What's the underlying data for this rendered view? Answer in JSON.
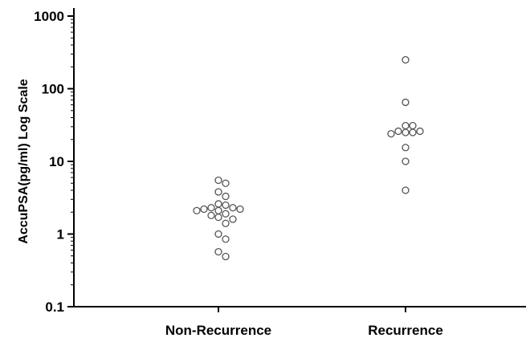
{
  "chart_data": {
    "type": "scatter",
    "title": "",
    "xlabel": "",
    "ylabel": "AccuPSA(pg/ml) Log Scale",
    "y_scale": "log",
    "ylim": [
      0.1,
      1000
    ],
    "yticks": [
      {
        "value": 0.1,
        "label": "0.1"
      },
      {
        "value": 1,
        "label": "1"
      },
      {
        "value": 10,
        "label": "10"
      },
      {
        "value": 100,
        "label": "100"
      },
      {
        "value": 1000,
        "label": "1000"
      }
    ],
    "categories": [
      "Non-Recurrence",
      "Recurrence"
    ],
    "grid": false,
    "marker": "open-circle",
    "colors": {
      "axis": "#000000",
      "marker_stroke": "#555555",
      "marker_fill": "#ffffff"
    },
    "series": [
      {
        "category": "Non-Recurrence",
        "values": [
          5.5,
          5.0,
          3.8,
          3.3,
          2.6,
          2.5,
          2.3,
          2.3,
          2.2,
          2.2,
          2.1,
          2.1,
          1.9,
          1.8,
          1.7,
          1.6,
          1.4,
          1.0,
          0.85,
          0.57,
          0.49
        ]
      },
      {
        "category": "Recurrence",
        "values": [
          250,
          65,
          31,
          31,
          26,
          26,
          25,
          25,
          24,
          15.5,
          10,
          4
        ]
      }
    ]
  }
}
